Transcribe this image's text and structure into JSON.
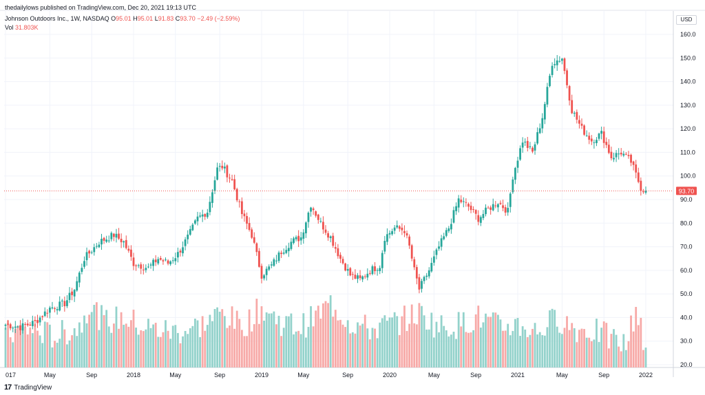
{
  "header": {
    "published": "thedailylows published on TradingView.com, Dec 20, 2021 19:13 UTC",
    "symbol": "Johnson Outdoors Inc., 1W, NASDAQ",
    "o_label": "O",
    "o_val": "95.01",
    "h_label": "H",
    "h_val": "95.01",
    "l_label": "L",
    "l_val": "91.83",
    "c_label": "C",
    "c_val": "93.70",
    "chg": "−2.49 (−2.59%)",
    "vol_label": "Vol",
    "vol_val": "31.803K"
  },
  "currency": "USD",
  "brand": {
    "name": "TradingView",
    "mark": "17"
  },
  "chart_data": {
    "type": "candlestick",
    "title": "Johnson Outdoors Inc., 1W, NASDAQ",
    "ylim": [
      20,
      165
    ],
    "yticks": [
      20,
      30,
      40,
      50,
      60,
      70,
      80,
      90,
      100,
      110,
      120,
      130,
      140,
      150,
      160
    ],
    "last_price": 93.7,
    "last_price_label": "93.70",
    "xticks": [
      {
        "label": "017",
        "week": 0
      },
      {
        "label": "May",
        "week": 18
      },
      {
        "label": "Sep",
        "week": 35
      },
      {
        "label": "2018",
        "week": 52
      },
      {
        "label": "May",
        "week": 69
      },
      {
        "label": "Sep",
        "week": 87
      },
      {
        "label": "2019",
        "week": 104
      },
      {
        "label": "May",
        "week": 121
      },
      {
        "label": "Sep",
        "week": 139
      },
      {
        "label": "2020",
        "week": 156
      },
      {
        "label": "May",
        "week": 174
      },
      {
        "label": "Sep",
        "week": 191
      },
      {
        "label": "2021",
        "week": 208
      },
      {
        "label": "May",
        "week": 226
      },
      {
        "label": "Sep",
        "week": 243
      },
      {
        "label": "2022",
        "week": 260
      }
    ],
    "volume_scale_note": "volume overlay occupies lower panel (approx 20–48 on price axis)",
    "close_anchors": [
      [
        0,
        37
      ],
      [
        6,
        36
      ],
      [
        12,
        38
      ],
      [
        18,
        44
      ],
      [
        24,
        46
      ],
      [
        28,
        52
      ],
      [
        32,
        65
      ],
      [
        38,
        72
      ],
      [
        44,
        75
      ],
      [
        48,
        72
      ],
      [
        52,
        63
      ],
      [
        58,
        61
      ],
      [
        62,
        65
      ],
      [
        66,
        63
      ],
      [
        70,
        67
      ],
      [
        74,
        74
      ],
      [
        78,
        82
      ],
      [
        82,
        85
      ],
      [
        86,
        103
      ],
      [
        88,
        104
      ],
      [
        92,
        98
      ],
      [
        96,
        84
      ],
      [
        100,
        75
      ],
      [
        104,
        58
      ],
      [
        108,
        62
      ],
      [
        112,
        68
      ],
      [
        116,
        72
      ],
      [
        120,
        74
      ],
      [
        124,
        88
      ],
      [
        128,
        80
      ],
      [
        132,
        74
      ],
      [
        136,
        65
      ],
      [
        140,
        58
      ],
      [
        144,
        56
      ],
      [
        148,
        60
      ],
      [
        152,
        62
      ],
      [
        154,
        74
      ],
      [
        158,
        78
      ],
      [
        162,
        77
      ],
      [
        164,
        70
      ],
      [
        166,
        60
      ],
      [
        168,
        52
      ],
      [
        172,
        60
      ],
      [
        176,
        70
      ],
      [
        180,
        78
      ],
      [
        184,
        90
      ],
      [
        188,
        87
      ],
      [
        192,
        82
      ],
      [
        196,
        86
      ],
      [
        200,
        89
      ],
      [
        204,
        85
      ],
      [
        206,
        100
      ],
      [
        210,
        115
      ],
      [
        214,
        110
      ],
      [
        218,
        125
      ],
      [
        222,
        148
      ],
      [
        226,
        150
      ],
      [
        230,
        128
      ],
      [
        234,
        120
      ],
      [
        238,
        115
      ],
      [
        242,
        118
      ],
      [
        246,
        108
      ],
      [
        250,
        110
      ],
      [
        254,
        106
      ],
      [
        258,
        95
      ],
      [
        260,
        93.7
      ]
    ],
    "volume_anchors": [
      [
        0,
        33
      ],
      [
        10,
        35
      ],
      [
        20,
        32
      ],
      [
        30,
        36
      ],
      [
        34,
        46
      ],
      [
        40,
        38
      ],
      [
        48,
        40
      ],
      [
        54,
        37
      ],
      [
        60,
        35
      ],
      [
        70,
        34
      ],
      [
        80,
        37
      ],
      [
        88,
        42
      ],
      [
        96,
        36
      ],
      [
        104,
        44
      ],
      [
        112,
        38
      ],
      [
        120,
        36
      ],
      [
        128,
        42
      ],
      [
        132,
        46
      ],
      [
        140,
        38
      ],
      [
        148,
        35
      ],
      [
        156,
        37
      ],
      [
        164,
        40
      ],
      [
        168,
        42
      ],
      [
        176,
        36
      ],
      [
        184,
        37
      ],
      [
        192,
        40
      ],
      [
        200,
        36
      ],
      [
        208,
        37
      ],
      [
        216,
        34
      ],
      [
        224,
        40
      ],
      [
        232,
        35
      ],
      [
        240,
        34
      ],
      [
        248,
        30
      ],
      [
        252,
        28
      ],
      [
        256,
        44
      ],
      [
        258,
        38
      ],
      [
        260,
        22
      ]
    ]
  }
}
